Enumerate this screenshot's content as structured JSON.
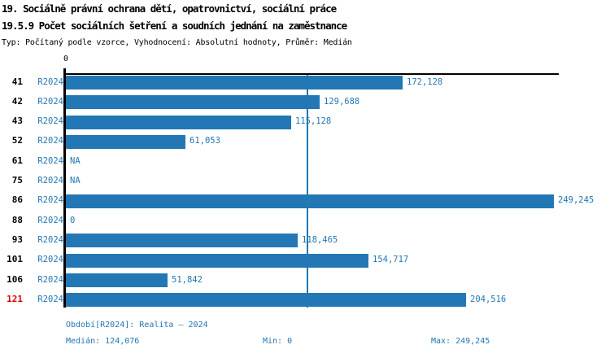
{
  "header": {
    "title_line1": "19. Sociálně právní ochrana dětí, opatrovnictví, sociální práce",
    "title_line2": "19.5.9 Počet sociálních šetření a soudních jednání na zaměstnance",
    "subtitle": "Typ: Počítaný podle vzorce, Vyhodnocení: Absolutní hodnoty, Průměr: Medián"
  },
  "chart_data": {
    "type": "bar",
    "orientation": "horizontal",
    "title": "19.5.9 Počet sociálních šetření a soudních jednání na zaměstnance",
    "axis": {
      "origin_label": "0",
      "min": 0,
      "max": 249245,
      "gridlines": "median-only"
    },
    "median_value": 124076,
    "period_label": "R2024",
    "categories": [
      "41",
      "42",
      "43",
      "52",
      "61",
      "75",
      "86",
      "88",
      "93",
      "101",
      "106",
      "121"
    ],
    "rows": [
      {
        "id": "41",
        "period": "R2024",
        "value": 172128,
        "label": "172,128",
        "highlight": false
      },
      {
        "id": "42",
        "period": "R2024",
        "value": 129688,
        "label": "129,688",
        "highlight": false
      },
      {
        "id": "43",
        "period": "R2024",
        "value": 115128,
        "label": "115,128",
        "highlight": false
      },
      {
        "id": "52",
        "period": "R2024",
        "value": 61053,
        "label": "61,053",
        "highlight": false
      },
      {
        "id": "61",
        "period": "R2024",
        "value": null,
        "label": "NA",
        "highlight": false
      },
      {
        "id": "75",
        "period": "R2024",
        "value": null,
        "label": "NA",
        "highlight": false
      },
      {
        "id": "86",
        "period": "R2024",
        "value": 249245,
        "label": "249,245",
        "highlight": false
      },
      {
        "id": "88",
        "period": "R2024",
        "value": 0,
        "label": "0",
        "highlight": false
      },
      {
        "id": "93",
        "period": "R2024",
        "value": 118465,
        "label": "118,465",
        "highlight": false
      },
      {
        "id": "101",
        "period": "R2024",
        "value": 154717,
        "label": "154,717",
        "highlight": false
      },
      {
        "id": "106",
        "period": "R2024",
        "value": 51842,
        "label": "51,842",
        "highlight": false
      },
      {
        "id": "121",
        "period": "R2024",
        "value": 204516,
        "label": "204,516",
        "highlight": true
      }
    ],
    "legend_position": "none"
  },
  "footer": {
    "period_info": "Období[R2024]: Realita – 2024",
    "median": "Medián: 124,076",
    "min": "Min: 0",
    "max": "Max: 249,245"
  },
  "colors": {
    "bar": "#2277b4",
    "text_blue": "#2277b4",
    "highlight_red": "#d40000",
    "axis": "#000000",
    "background": "#ffffff"
  }
}
